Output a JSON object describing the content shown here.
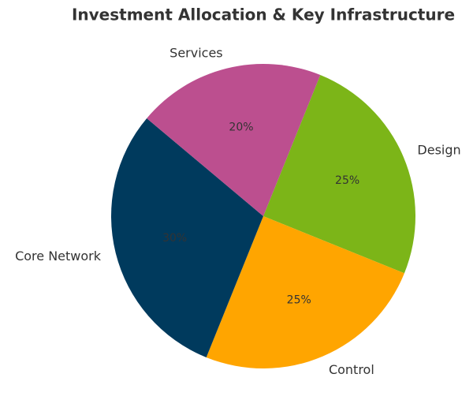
{
  "chart_data": {
    "type": "pie",
    "title": "Investment Allocation & Key Infrastructure",
    "categories": [
      "Design",
      "Control",
      "Core Network",
      "Services"
    ],
    "values": [
      25,
      25,
      30,
      20
    ],
    "value_labels": [
      "25%",
      "25%",
      "30%",
      "20%"
    ],
    "colors": [
      "#7cb518",
      "#ffa500",
      "#003a5d",
      "#bc4f8f"
    ]
  }
}
